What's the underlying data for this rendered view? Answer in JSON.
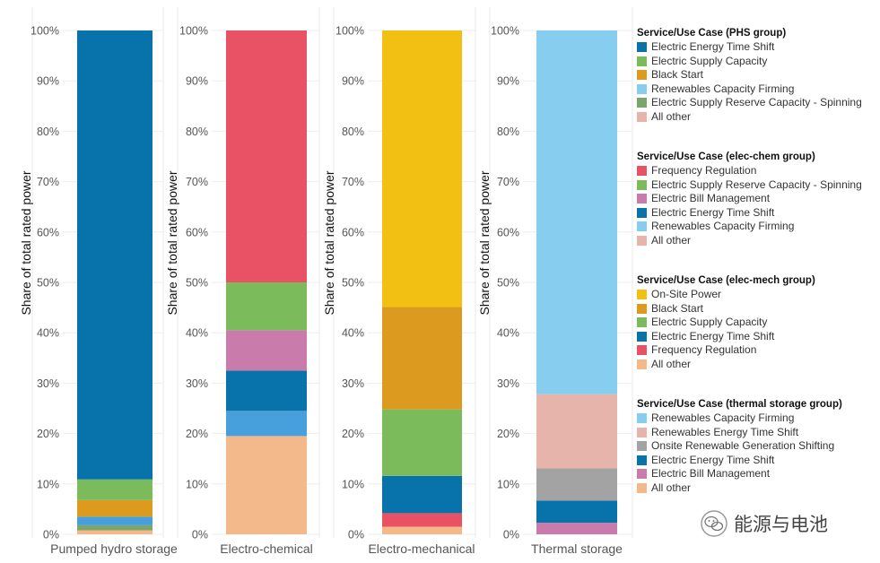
{
  "chart_data": {
    "type": "bar",
    "stacked": true,
    "percent": true,
    "ylabel": "Share of total rated power",
    "ylim": [
      0,
      100
    ],
    "yticks": [
      "0%",
      "10%",
      "20%",
      "30%",
      "40%",
      "50%",
      "60%",
      "70%",
      "80%",
      "90%",
      "100%"
    ],
    "grid": true,
    "legend_position": "right",
    "panels": [
      {
        "category": "Pumped hydro storage",
        "legend_title": "Service/Use Case (PHS group)",
        "segments": [
          {
            "name": "All other",
            "value": 0.8,
            "color": "#f4b98a"
          },
          {
            "name": "Electric Supply Reserve Capacity - Spinning",
            "value": 1.0,
            "color": "#7aa66e"
          },
          {
            "name": "Renewables Capacity Firming",
            "value": 1.7,
            "color": "#47a0dc"
          },
          {
            "name": "Black Start",
            "value": 3.3,
            "color": "#dc9b1e"
          },
          {
            "name": "Electric Supply Capacity",
            "value": 4.1,
            "color": "#7cbb5c"
          },
          {
            "name": "Electric Energy Time Shift",
            "value": 89.1,
            "color": "#0873aa"
          }
        ],
        "legend": [
          {
            "name": "Electric Energy Time Shift",
            "color": "#0873aa"
          },
          {
            "name": "Electric Supply Capacity",
            "color": "#7cbb5c"
          },
          {
            "name": "Black Start",
            "color": "#dc9b1e"
          },
          {
            "name": "Renewables Capacity Firming",
            "color": "#86cdef"
          },
          {
            "name": "Electric Supply Reserve Capacity - Spinning",
            "color": "#7aa66e"
          },
          {
            "name": "All other",
            "color": "#e6b4ab"
          }
        ]
      },
      {
        "category": "Electro-chemical",
        "legend_title": "Service/Use Case (elec-chem group)",
        "segments": [
          {
            "name": "All other",
            "value": 19.5,
            "color": "#f4b98a"
          },
          {
            "name": "Renewables Capacity Firming",
            "value": 5.0,
            "color": "#47a0dc"
          },
          {
            "name": "Electric Energy Time Shift",
            "value": 8.0,
            "color": "#0873aa"
          },
          {
            "name": "Electric Bill Management",
            "value": 8.0,
            "color": "#c97bab"
          },
          {
            "name": "Electric Supply Reserve Capacity - Spinning",
            "value": 9.5,
            "color": "#7cbb5c"
          },
          {
            "name": "Frequency Regulation",
            "value": 50.0,
            "color": "#e95264"
          }
        ],
        "legend": [
          {
            "name": "Frequency Regulation",
            "color": "#e95264"
          },
          {
            "name": "Electric Supply Reserve Capacity - Spinning",
            "color": "#7cbb5c"
          },
          {
            "name": "Electric Bill Management",
            "color": "#c97bab"
          },
          {
            "name": "Electric Energy Time Shift",
            "color": "#0873aa"
          },
          {
            "name": "Renewables Capacity Firming",
            "color": "#86cdef"
          },
          {
            "name": "All other",
            "color": "#e6b4ab"
          }
        ]
      },
      {
        "category": "Electro-mechanical",
        "legend_title": "Service/Use Case (elec-mech group)",
        "segments": [
          {
            "name": "All other",
            "value": 1.5,
            "color": "#f4b98a"
          },
          {
            "name": "Frequency Regulation",
            "value": 2.7,
            "color": "#e95264"
          },
          {
            "name": "Electric Energy Time Shift",
            "value": 7.4,
            "color": "#0873aa"
          },
          {
            "name": "Electric Supply Capacity",
            "value": 13.2,
            "color": "#7cbb5c"
          },
          {
            "name": "Black Start",
            "value": 20.3,
            "color": "#dc9b1e"
          },
          {
            "name": "On-Site Power",
            "value": 54.9,
            "color": "#f2c012"
          }
        ],
        "legend": [
          {
            "name": "On-Site Power",
            "color": "#f2c012"
          },
          {
            "name": "Black Start",
            "color": "#dc9b1e"
          },
          {
            "name": "Electric Supply Capacity",
            "color": "#7cbb5c"
          },
          {
            "name": "Electric Energy Time Shift",
            "color": "#0873aa"
          },
          {
            "name": "Frequency Regulation",
            "color": "#e95264"
          },
          {
            "name": "All other",
            "color": "#f4b98a"
          }
        ]
      },
      {
        "category": "Thermal storage",
        "legend_title": "Service/Use Case (thermal storage group)",
        "segments": [
          {
            "name": "Electric Bill Management",
            "value": 2.3,
            "color": "#c97bab"
          },
          {
            "name": "Electric Energy Time Shift",
            "value": 4.4,
            "color": "#0873aa"
          },
          {
            "name": "Onsite Renewable Generation Shifting",
            "value": 6.4,
            "color": "#a3a3a3"
          },
          {
            "name": "Renewables Energy Time Shift",
            "value": 14.7,
            "color": "#e6b4ab"
          },
          {
            "name": "Renewables Capacity Firming",
            "value": 72.2,
            "color": "#86cdef"
          }
        ],
        "legend": [
          {
            "name": "Renewables Capacity Firming",
            "color": "#86cdef"
          },
          {
            "name": "Renewables Energy Time Shift",
            "color": "#e6b4ab"
          },
          {
            "name": "Onsite Renewable Generation Shifting",
            "color": "#a3a3a3"
          },
          {
            "name": "Electric Energy Time Shift",
            "color": "#0873aa"
          },
          {
            "name": "Electric Bill Management",
            "color": "#c97bab"
          },
          {
            "name": "All other",
            "color": "#f4b98a"
          }
        ]
      }
    ]
  },
  "watermark": {
    "text": "能源与电池",
    "icon": "wechat-icon"
  }
}
